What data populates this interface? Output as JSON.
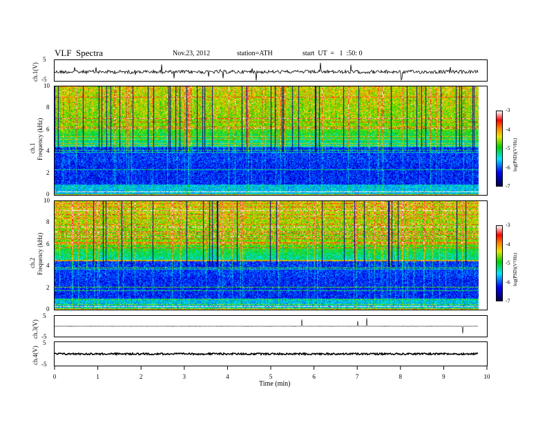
{
  "header": {
    "title": "VLF  Spectra",
    "date": "Nov.23, 2012",
    "station": "station=ATH",
    "start": "start  UT  =   1  :50: 0"
  },
  "chart_data": [
    {
      "type": "line",
      "title": "VLF  Spectra",
      "ylabel": "ch.1(V)",
      "ylim": [
        -5,
        5
      ],
      "yticks": [
        "5",
        "-5"
      ],
      "xlim": [
        0,
        10
      ],
      "series_summary": "noisy waveform near 0 V with sharp spikes",
      "x": [
        0,
        1,
        2,
        3,
        4,
        5,
        6,
        7,
        8,
        9,
        9.8
      ],
      "y": [
        0.5,
        0.4,
        0.3,
        0.2,
        0.3,
        0.5,
        0.4,
        0.4,
        0.3,
        0.4,
        0.0
      ]
    },
    {
      "type": "heatmap",
      "ylabel": "ch.1\nFrequency (kHz)",
      "yticks": [
        "0",
        "2",
        "4",
        "6",
        "8",
        "10"
      ],
      "ylim": [
        0,
        10
      ],
      "xlim": [
        0,
        9.8
      ],
      "colorbar": {
        "label": "log(PSD)(V²/Hz)",
        "ticks": [
          "-3",
          "-4",
          "-5",
          "-6",
          "-7"
        ],
        "range": [
          -7,
          -3
        ]
      }
    },
    {
      "type": "heatmap",
      "ylabel": "ch.2\nFrequency (kHz)",
      "yticks": [
        "0",
        "2",
        "4",
        "6",
        "8",
        "10"
      ],
      "ylim": [
        0,
        10
      ],
      "xlim": [
        0,
        9.8
      ],
      "colorbar": {
        "label": "log(PSD)(V²/Hz)",
        "ticks": [
          "-3",
          "-4",
          "-5",
          "-6",
          "-7"
        ],
        "range": [
          -7,
          -3
        ]
      }
    },
    {
      "type": "line",
      "ylabel": "ch.3(V)",
      "ylim": [
        -5,
        5
      ],
      "yticks": [
        "5",
        "-5"
      ],
      "x": [
        0,
        9.8
      ],
      "y": [
        0,
        0
      ]
    },
    {
      "type": "line",
      "ylabel": "ch.4(V)",
      "ylim": [
        -5,
        5
      ],
      "yticks": [
        "5",
        "-5"
      ],
      "x": [
        0,
        9.8
      ],
      "y": [
        0,
        0
      ]
    }
  ],
  "xaxis": {
    "label": "Time  (min)",
    "ticks": [
      "0",
      "1",
      "2",
      "3",
      "4",
      "5",
      "6",
      "7",
      "8",
      "9",
      "10"
    ],
    "range": [
      0,
      10
    ]
  },
  "colors": {
    "trace": "#000000",
    "background": "#ffffff"
  }
}
